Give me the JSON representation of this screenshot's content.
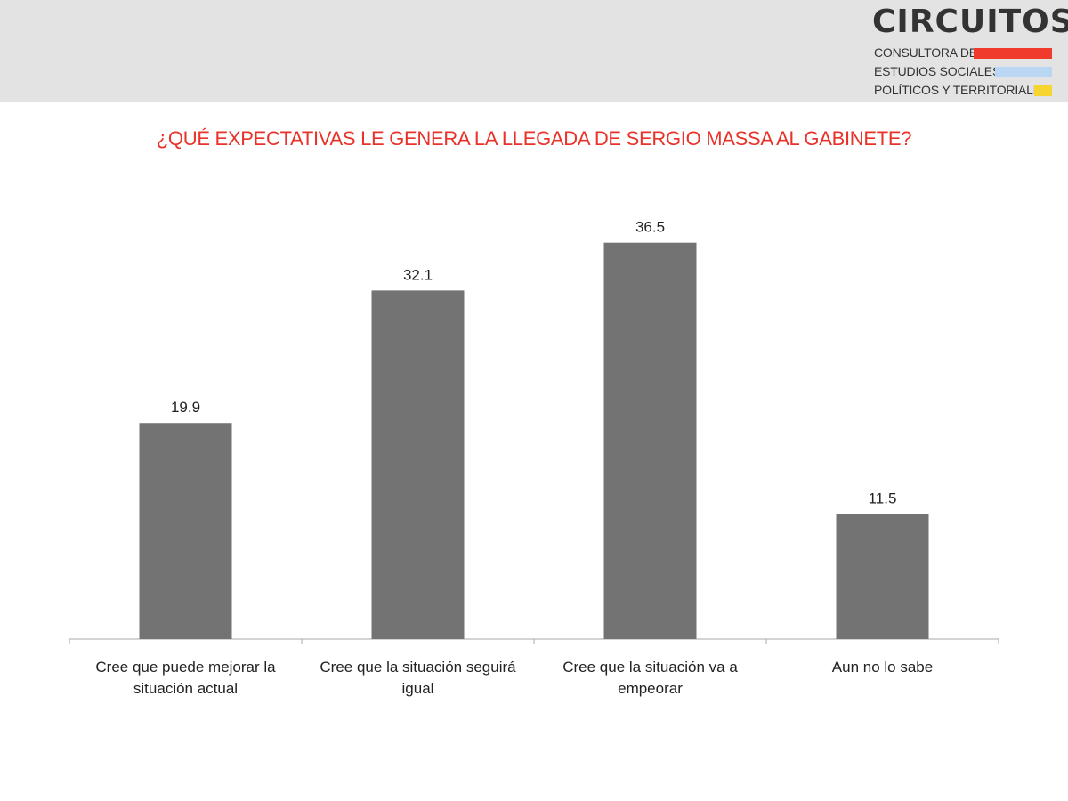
{
  "brand": {
    "name": "CIRCUITOS",
    "lines": [
      "CONSULTORA DE",
      "ESTUDIOS SOCIALES,",
      "POLÍTICOS Y TERRITORIALES"
    ],
    "bar_colors": [
      "#f03a2c",
      "#b9d7f2",
      "#f7d531"
    ]
  },
  "colors": {
    "header_bg": "#e3e3e3",
    "title": "#e8322a",
    "bar": "#737373",
    "axis": "#aaaaaa"
  },
  "chart_data": {
    "type": "bar",
    "title": "¿QUÉ EXPECTATIVAS LE GENERA LA LLEGADA DE SERGIO MASSA AL GABINETE?",
    "categories": [
      "Cree que puede mejorar la situación actual",
      "Cree que la situación seguirá igual",
      "Cree que la situación va a empeorar",
      "Aun no lo sabe"
    ],
    "values": [
      19.9,
      32.1,
      36.5,
      11.5
    ],
    "value_labels": [
      "19.9",
      "32.1",
      "36.5",
      "11.5"
    ],
    "ylim": [
      0,
      40
    ],
    "grid": false,
    "legend": "none",
    "xlabel": "",
    "ylabel": ""
  }
}
